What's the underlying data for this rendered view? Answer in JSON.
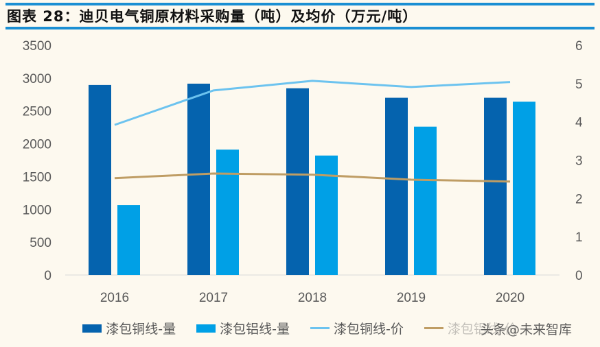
{
  "title": "图表 28：迪贝电气铜原材料采购量（吨）及均价（万元/吨）",
  "watermark": "头条@未来智库",
  "colors": {
    "copper_volume": "#0563ae",
    "aluminum_volume": "#00a0e6",
    "copper_price": "#6cc3ef",
    "aluminum_price": "#bf9d64",
    "rule": "#1b8fd3"
  },
  "chart_data": {
    "type": "bar",
    "categories": [
      "2016",
      "2017",
      "2018",
      "2019",
      "2020"
    ],
    "left_axis": {
      "ylim": [
        0,
        3500
      ],
      "ticks": [
        0,
        500,
        1000,
        1500,
        2000,
        2500,
        3000,
        3500
      ]
    },
    "right_axis": {
      "ylim": [
        0,
        6
      ],
      "ticks": [
        0,
        1,
        2,
        3,
        4,
        5,
        6
      ]
    },
    "grid": false,
    "legend_position": "bottom",
    "series": [
      {
        "name": "漆包铜线-量",
        "type": "bar",
        "axis": "left",
        "values": [
          2895,
          2915,
          2845,
          2700,
          2700
        ]
      },
      {
        "name": "漆包铝线-量",
        "type": "bar",
        "axis": "left",
        "values": [
          1065,
          1910,
          1820,
          2260,
          2640
        ]
      },
      {
        "name": "漆包铜线-价",
        "type": "line",
        "axis": "right",
        "values": [
          3.92,
          4.82,
          5.07,
          4.91,
          5.04
        ]
      },
      {
        "name": "漆包铝线-价",
        "type": "line",
        "axis": "right",
        "values": [
          2.53,
          2.65,
          2.62,
          2.49,
          2.44
        ]
      }
    ]
  }
}
